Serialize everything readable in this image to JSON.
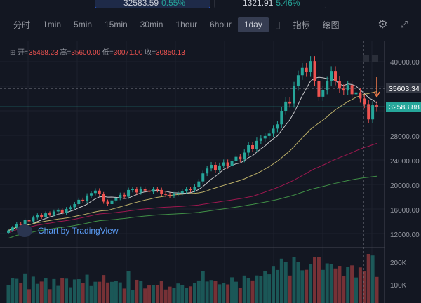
{
  "tickers": [
    {
      "price": "32583.59",
      "change": "0.55%"
    },
    {
      "price": "1321.91",
      "change": "5.46%"
    }
  ],
  "toolbar": {
    "intervals": [
      "分时",
      "1min",
      "5min",
      "15min",
      "30min",
      "1hour",
      "6hour",
      "1day"
    ],
    "selected": "1day",
    "indicators": "指标",
    "drawing": "绘图"
  },
  "legend": {
    "open_label": "开=",
    "open": "35468.23",
    "high_label": "高=",
    "high": "35600.00",
    "low_label": "低=",
    "low": "30071.00",
    "close_label": "收=",
    "close": "30850.13"
  },
  "watermark": "Chart by TradingView",
  "price_axis": [
    "40000.00",
    "28000.00",
    "24000.00",
    "20000.00",
    "16000.00",
    "12000.00"
  ],
  "price_labels": {
    "crosshair": "35603.34",
    "last": "32583.88"
  },
  "volume_axis": [
    "200K",
    "100K"
  ],
  "colors": {
    "up": "#26a69a",
    "down": "#ef5350",
    "bg": "#131722"
  },
  "closes": [
    12500,
    13000,
    13600,
    13400,
    14200,
    14000,
    14600,
    15000,
    14700,
    15300,
    15100,
    15600,
    15900,
    15400,
    16000,
    16300,
    16800,
    17500,
    17300,
    18200,
    18600,
    19000,
    18400,
    17200,
    16800,
    17400,
    17800,
    18300,
    18000,
    19100,
    19200,
    18700,
    19300,
    19000,
    18800,
    19200,
    19100,
    18500,
    18300,
    18200,
    18400,
    18600,
    18900,
    19200,
    19100,
    19600,
    20500,
    21800,
    22600,
    23200,
    22400,
    23100,
    23600,
    23000,
    23800,
    24500,
    24100,
    25200,
    26400,
    25800,
    27100,
    27500,
    27900,
    28300,
    29100,
    29800,
    32000,
    33500,
    33200,
    36000,
    37800,
    39000,
    38300,
    40100,
    36800,
    34300,
    35400,
    36800,
    38500,
    36900,
    35600,
    35300,
    36200,
    34700,
    35000,
    34000,
    33100,
    30600,
    32900,
    32583
  ]
}
